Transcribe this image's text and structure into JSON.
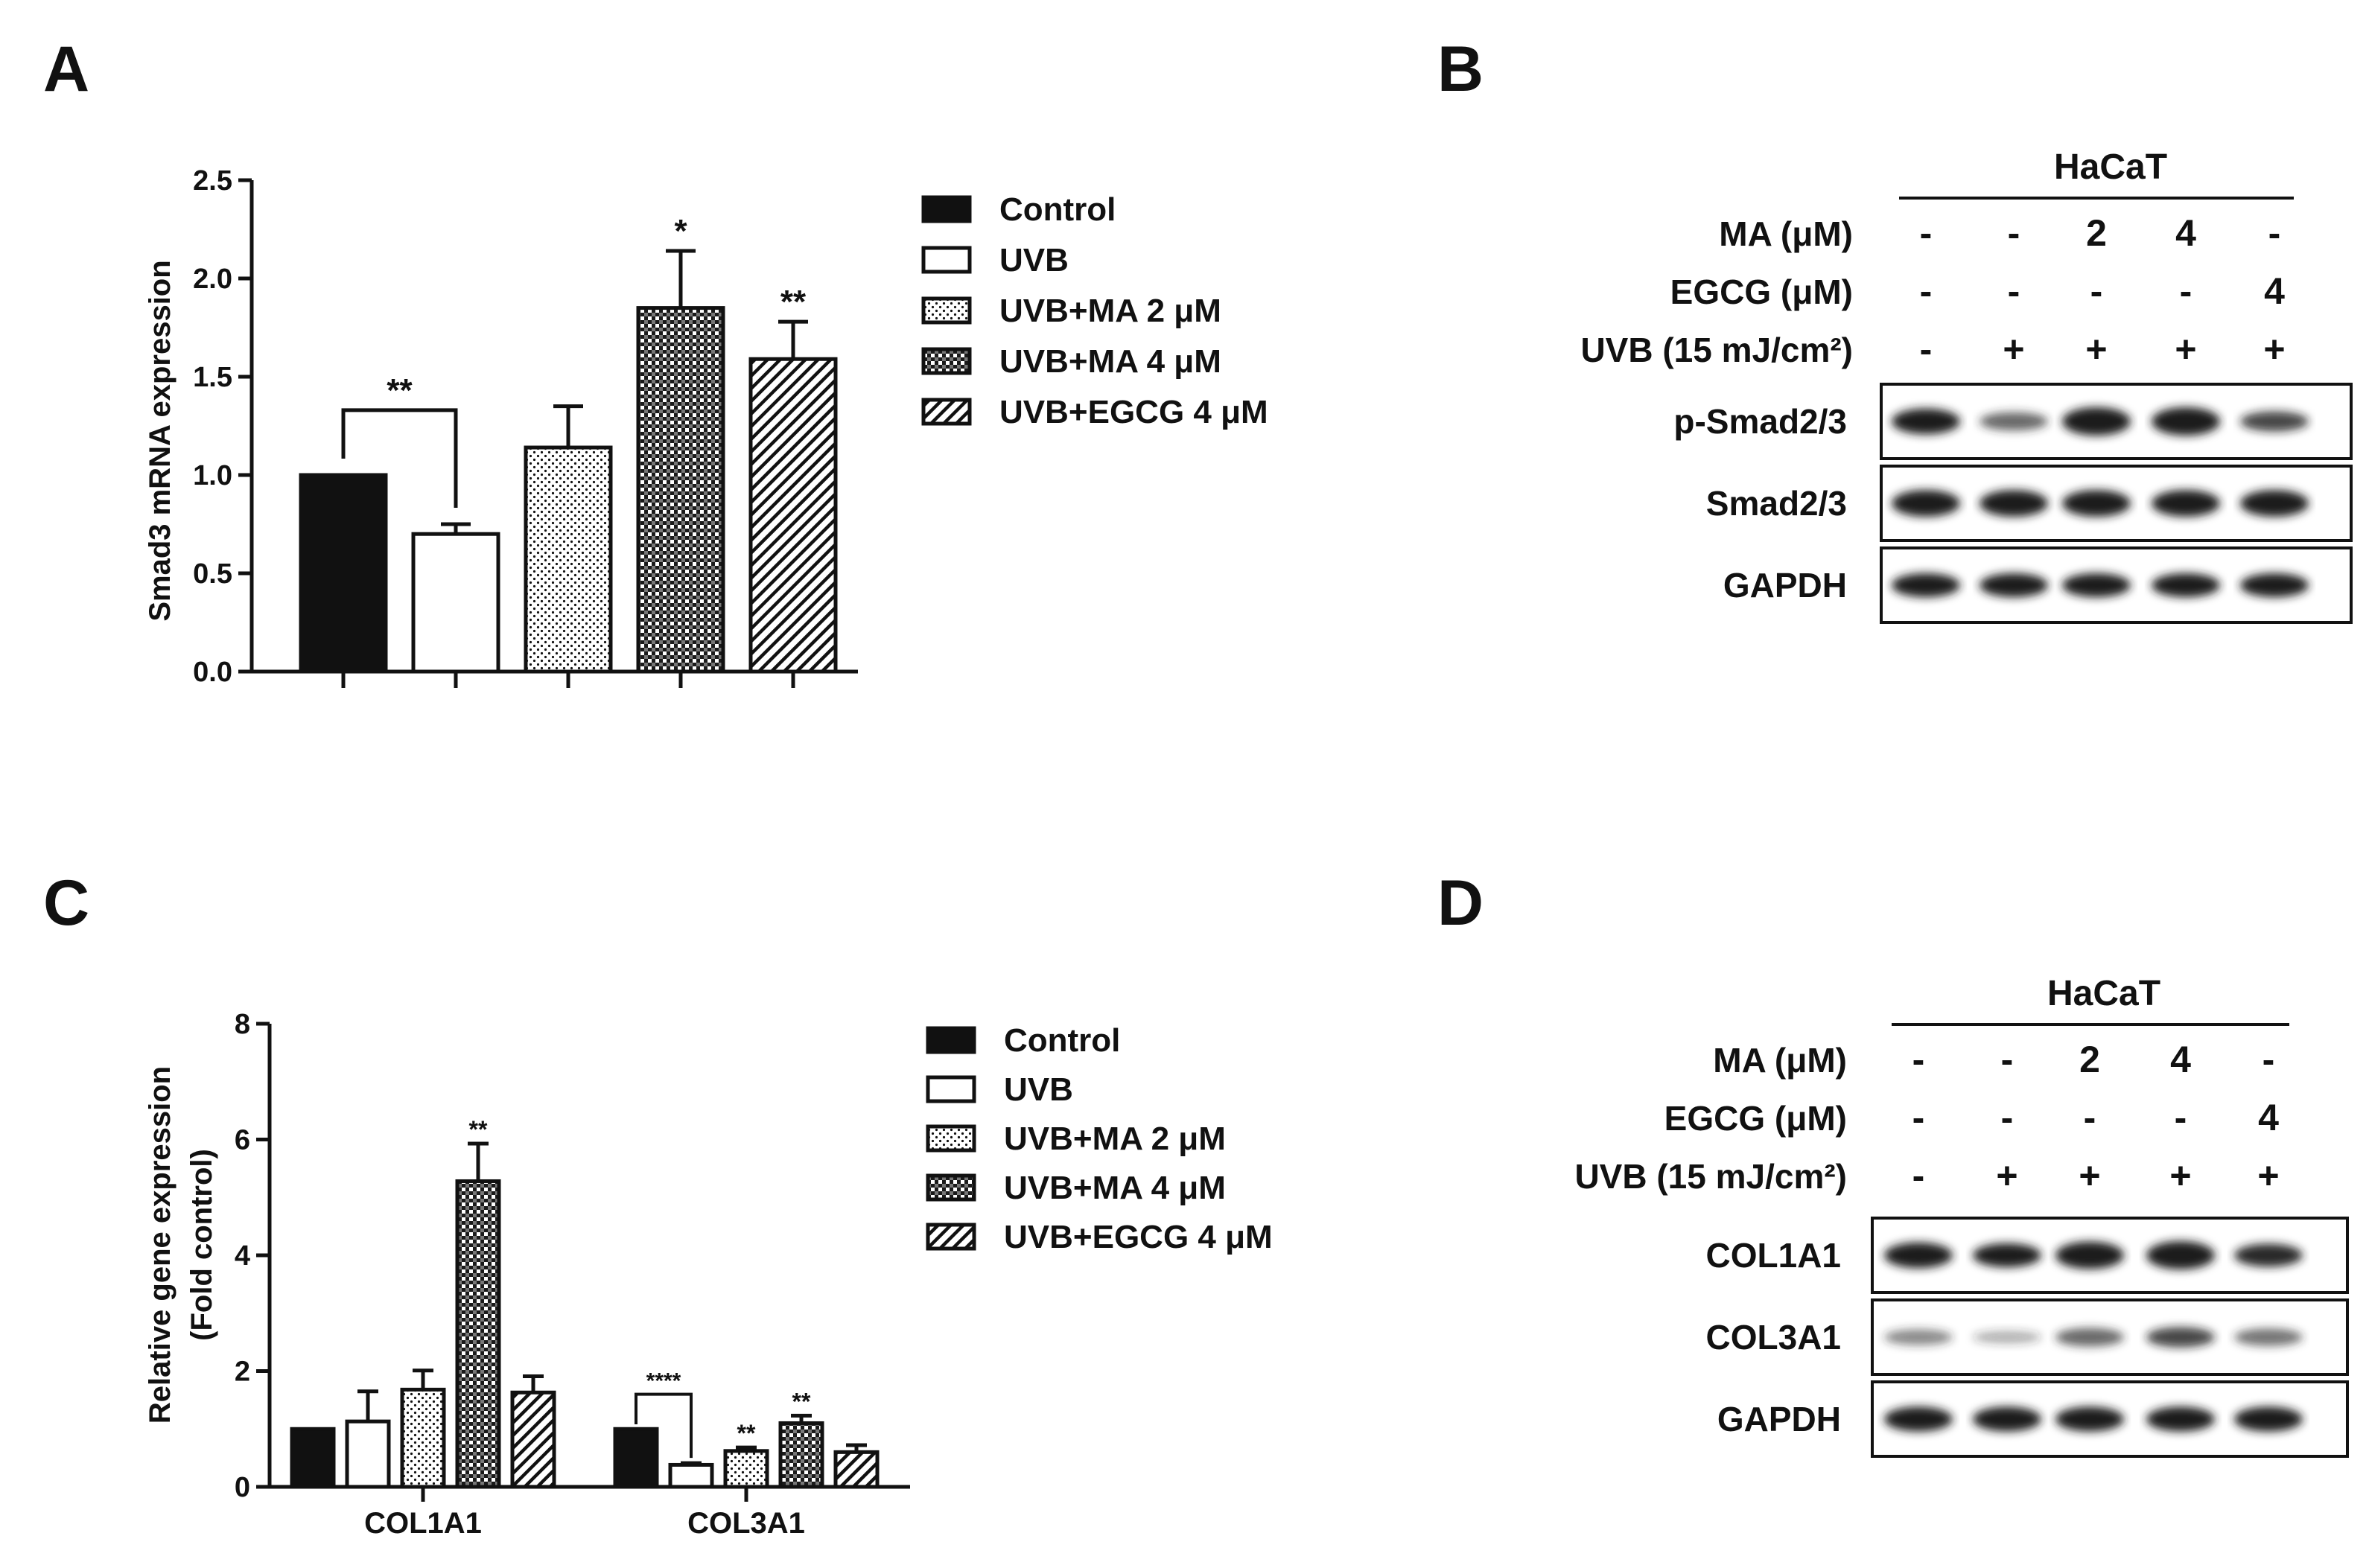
{
  "panels": {
    "A": "A",
    "B": "B",
    "C": "C",
    "D": "D"
  },
  "legend": [
    "Control",
    "UVB",
    "UVB+MA 2 μM",
    "UVB+MA 4 μM",
    "UVB+EGCG 4 μM"
  ],
  "colors": {
    "ink": "#111111",
    "paper": "#ffffff",
    "band": "#1c1c1c",
    "faint_band": "#2a2a2a"
  },
  "fills": [
    "solid",
    "empty",
    "dots",
    "checker",
    "hatch"
  ],
  "chart_data": [
    {
      "panel": "A",
      "type": "bar",
      "ylabel": "Smad3 mRNA expression",
      "xlabel": "",
      "ylim": [
        0,
        2.5
      ],
      "yticks": [
        0.0,
        0.5,
        1.0,
        1.5,
        2.0,
        2.5
      ],
      "ytick_labels": [
        "0.0",
        "0.5",
        "1.0",
        "1.5",
        "2.0",
        "2.5"
      ],
      "categories": [
        "Control",
        "UVB",
        "UVB+MA 2 μM",
        "UVB+MA 4 μM",
        "UVB+EGCG 4 μM"
      ],
      "values": [
        1.0,
        0.7,
        1.14,
        1.85,
        1.59
      ],
      "errors": [
        0.0,
        0.05,
        0.21,
        0.29,
        0.19
      ],
      "significance": [
        "",
        "",
        "",
        "*",
        "**"
      ],
      "comparison": {
        "from": 0,
        "to": 1,
        "label": "**"
      }
    },
    {
      "panel": "C",
      "type": "bar",
      "ylabel": "Relative gene expression",
      "ylabel2": "(Fold control)",
      "xlabel": "",
      "ylim": [
        0,
        8
      ],
      "yticks": [
        0,
        2,
        4,
        6,
        8
      ],
      "ytick_labels": [
        "0",
        "2",
        "4",
        "6",
        "8"
      ],
      "categories": [
        "COL1A1",
        "COL3A1"
      ],
      "series": [
        {
          "name": "Control",
          "values": [
            1.0,
            1.0
          ],
          "errors": [
            0.0,
            0.0
          ],
          "significance": [
            "",
            ""
          ]
        },
        {
          "name": "UVB",
          "values": [
            1.13,
            0.38
          ],
          "errors": [
            0.52,
            0.03
          ],
          "significance": [
            "",
            ""
          ]
        },
        {
          "name": "UVB+MA 2 μM",
          "values": [
            1.68,
            0.62
          ],
          "errors": [
            0.33,
            0.06
          ],
          "significance": [
            "",
            "**"
          ]
        },
        {
          "name": "UVB+MA 4 μM",
          "values": [
            5.28,
            1.1
          ],
          "errors": [
            0.65,
            0.13
          ],
          "significance": [
            "**",
            "**"
          ]
        },
        {
          "name": "UVB+EGCG 4 μM",
          "values": [
            1.63,
            0.6
          ],
          "errors": [
            0.28,
            0.12
          ],
          "significance": [
            "",
            ""
          ]
        }
      ],
      "comparison": {
        "category": 1,
        "from": 0,
        "to": 1,
        "label": "****"
      }
    }
  ],
  "blots": [
    {
      "panel": "B",
      "cell_line": "HaCaT",
      "conditions": [
        {
          "label": "MA (μM)",
          "values": [
            "-",
            "-",
            "2",
            "4",
            "-"
          ]
        },
        {
          "label": "EGCG (μM)",
          "values": [
            "-",
            "-",
            "-",
            "-",
            "4"
          ]
        },
        {
          "label": "UVB (15 mJ/cm²)",
          "values": [
            "-",
            "+",
            "+",
            "+",
            "+"
          ]
        }
      ],
      "proteins": [
        {
          "name": "p-Smad2/3",
          "intensity": [
            0.85,
            0.45,
            1.0,
            1.0,
            0.55
          ]
        },
        {
          "name": "Smad2/3",
          "intensity": [
            0.9,
            0.9,
            0.9,
            0.9,
            0.9
          ]
        },
        {
          "name": "GAPDH",
          "intensity": [
            0.75,
            0.75,
            0.75,
            0.75,
            0.75
          ]
        }
      ]
    },
    {
      "panel": "D",
      "cell_line": "HaCaT",
      "conditions": [
        {
          "label": "MA (μM)",
          "values": [
            "-",
            "-",
            "2",
            "4",
            "-"
          ]
        },
        {
          "label": "EGCG (μM)",
          "values": [
            "-",
            "-",
            "-",
            "-",
            "4"
          ]
        },
        {
          "label": "UVB (15 mJ/cm²)",
          "values": [
            "-",
            "+",
            "+",
            "+",
            "+"
          ]
        }
      ],
      "proteins": [
        {
          "name": "COL1A1",
          "intensity": [
            0.85,
            0.75,
            0.95,
            1.0,
            0.7
          ]
        },
        {
          "name": "COL3A1",
          "intensity": [
            0.3,
            0.12,
            0.45,
            0.55,
            0.4
          ]
        },
        {
          "name": "GAPDH",
          "intensity": [
            0.8,
            0.8,
            0.8,
            0.8,
            0.8
          ]
        }
      ]
    }
  ]
}
